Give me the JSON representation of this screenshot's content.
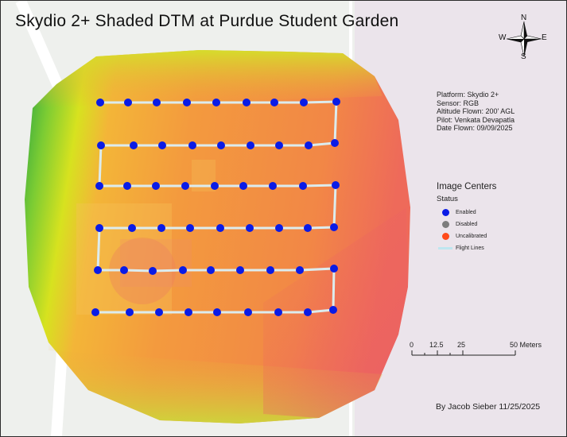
{
  "map": {
    "title": "Skydio 2+ Shaded DTM at Purdue Student Garden",
    "metadata": [
      "Platform: Skydio 2+",
      "Sensor: RGB",
      "Altitude Flown: 200' AGL",
      "Pilot: Venkata Devapatla",
      "Date Flown: 09/09/2025"
    ],
    "legend": {
      "title": "Image Centers",
      "subtitle": "Status",
      "items": [
        {
          "label": "Enabled",
          "color": "#0a1be6",
          "symbol": "dot"
        },
        {
          "label": "Disabled",
          "color": "#7d7d7d",
          "symbol": "dot"
        },
        {
          "label": "Uncalibrated",
          "color": "#ff4a1a",
          "symbol": "dot"
        },
        {
          "label": "Flight Lines",
          "color": "#bfe6f0",
          "symbol": "line"
        }
      ]
    },
    "north_arrow": {
      "n": "N",
      "s": "S",
      "e": "E",
      "w": "W"
    },
    "scale_bar": {
      "ticks": [
        "0",
        "12.5",
        "25",
        "50 Meters"
      ]
    },
    "credit": "By Jacob Sieber 11/25/2025",
    "colors": {
      "enabled_point": "#0a1be6",
      "flight_line": "#dcecee",
      "dtm_high": "#f08a3a",
      "dtm_low": "#22a043"
    }
  }
}
